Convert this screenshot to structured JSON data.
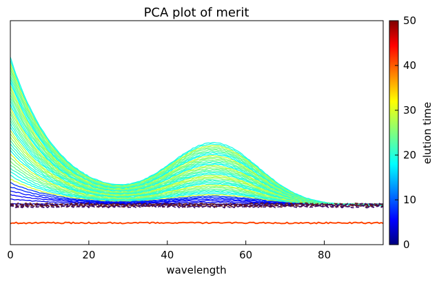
{
  "chart_data": {
    "type": "line",
    "title": "PCA plot of merit",
    "xlabel": "wavelength",
    "ylabel": "",
    "xlim": [
      0,
      95
    ],
    "xticks": [
      0,
      20,
      40,
      60,
      80
    ],
    "yticks_shown": false,
    "grid": false,
    "colormap": "jet",
    "colorbar": {
      "label": "elution time",
      "range": [
        0,
        50
      ],
      "ticks": [
        0,
        10,
        20,
        30,
        40,
        50
      ]
    },
    "series_summary": {
      "count_shown": "many overlapping spectra, one per elution time",
      "shape": "decaying peak at wavelength 0, minimum near 25, second broad peak near 52, tail to baseline near 95",
      "flat_trace_elution_time": 44
    }
  },
  "colors": {
    "jet_stops": [
      "#00007f",
      "#0000ff",
      "#007fff",
      "#00ffff",
      "#7fff7f",
      "#ffff00",
      "#ff7f00",
      "#ff0000",
      "#7f0000"
    ],
    "flat_trace": "#ff4400"
  }
}
